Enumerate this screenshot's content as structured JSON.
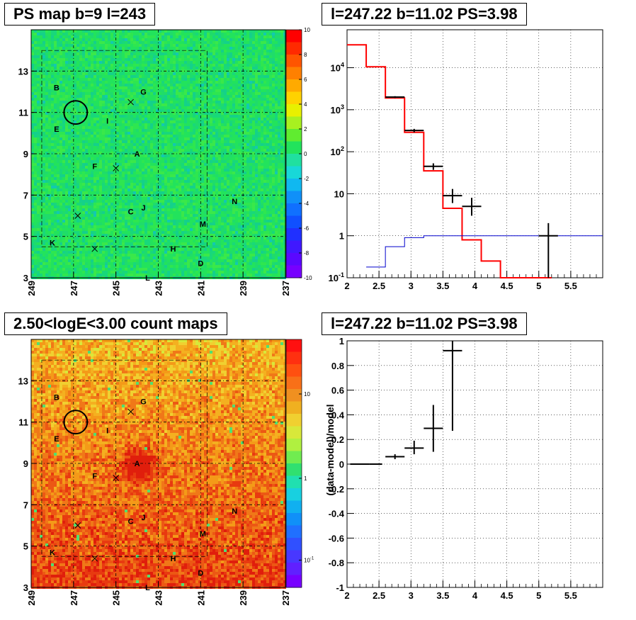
{
  "chart_data": [
    {
      "type": "heatmap",
      "title": "PS map b=9 l=243",
      "xlabel": "",
      "ylabel": "",
      "x_ticks": [
        "249",
        "247",
        "245",
        "243",
        "241",
        "239",
        "237"
      ],
      "y_ticks": [
        "3",
        "5",
        "7",
        "9",
        "11",
        "13"
      ],
      "xlim": [
        249,
        237
      ],
      "ylim": [
        3,
        15
      ],
      "grid": true,
      "color_scale": {
        "min": -10,
        "max": 10,
        "ticks": [
          "10",
          "8",
          "6",
          "4",
          "2",
          "0",
          "-2",
          "-4",
          "-6",
          "-8",
          "-10"
        ]
      },
      "colors": {
        "background": "#22e35c",
        "scale_top": "#ff0000",
        "scale_bottom": "#7700ff"
      },
      "sources": [
        {
          "label": "B",
          "l": 247.8,
          "b": 12.2
        },
        {
          "label": "G",
          "l": 243.7,
          "b": 12.0
        },
        {
          "label": "E",
          "l": 247.8,
          "b": 10.2
        },
        {
          "label": "I",
          "l": 245.4,
          "b": 10.6
        },
        {
          "label": "A",
          "l": 244.0,
          "b": 9.0
        },
        {
          "label": "F",
          "l": 246.0,
          "b": 8.4
        },
        {
          "label": "C",
          "l": 244.3,
          "b": 6.2
        },
        {
          "label": "J",
          "l": 243.7,
          "b": 6.4
        },
        {
          "label": "N",
          "l": 239.4,
          "b": 6.7
        },
        {
          "label": "M",
          "l": 240.9,
          "b": 5.6
        },
        {
          "label": "K",
          "l": 248.0,
          "b": 4.7
        },
        {
          "label": "H",
          "l": 242.3,
          "b": 4.4
        },
        {
          "label": "D",
          "l": 241.0,
          "b": 3.7
        },
        {
          "label": "L",
          "l": 243.5,
          "b": 3.0
        }
      ],
      "crosses": [
        {
          "l": 244.3,
          "b": 11.5
        },
        {
          "l": 245.0,
          "b": 8.3
        },
        {
          "l": 246.8,
          "b": 6.0
        },
        {
          "l": 246.0,
          "b": 4.4
        }
      ],
      "circle": {
        "l": 246.9,
        "b": 11.0,
        "r_deg": 0.55
      }
    },
    {
      "type": "line",
      "title": "l=247.22 b=11.02 PS=3.98",
      "xlabel": "",
      "ylabel": "",
      "x_ticks": [
        "2",
        "2.5",
        "3",
        "3.5",
        "4",
        "4.5",
        "5",
        "5.5"
      ],
      "y_ticks": [
        "10^4",
        "10^3",
        "10^2",
        "10",
        "1",
        "10^-1"
      ],
      "xlim": [
        2,
        6
      ],
      "ylim": [
        0.1,
        80000
      ],
      "log_y": true,
      "grid": true,
      "series": [
        {
          "color": "#ff0000",
          "step": true,
          "x": [
            2.0,
            2.3,
            2.6,
            2.9,
            3.2,
            3.5,
            3.8,
            4.1,
            4.4,
            5.2
          ],
          "values": [
            35000,
            10500,
            1900,
            290,
            35,
            4.5,
            0.8,
            0.25,
            0.1,
            0.1
          ]
        },
        {
          "color": "#0000cc",
          "step": true,
          "x": [
            2.3,
            2.6,
            2.9,
            3.2,
            3.5,
            3.8,
            4.1,
            6.0
          ],
          "values": [
            0.18,
            0.55,
            0.9,
            1.0,
            1.0,
            1.0,
            1.0,
            1.0
          ]
        },
        {
          "color": "#000000",
          "errorbars": true,
          "points": [
            {
              "x": 2.75,
              "xerr": 0.15,
              "y": 2000,
              "ylo": 1900,
              "yhi": 2100
            },
            {
              "x": 3.05,
              "xerr": 0.15,
              "y": 320,
              "ylo": 290,
              "yhi": 350
            },
            {
              "x": 3.35,
              "xerr": 0.15,
              "y": 45,
              "ylo": 37,
              "yhi": 53
            },
            {
              "x": 3.65,
              "xerr": 0.15,
              "y": 9,
              "ylo": 6,
              "yhi": 13
            },
            {
              "x": 3.95,
              "xerr": 0.15,
              "y": 5,
              "ylo": 3,
              "yhi": 8
            },
            {
              "x": 5.15,
              "xerr": 0.15,
              "y": 1,
              "ylo": 0.1,
              "yhi": 2
            }
          ]
        }
      ]
    },
    {
      "type": "heatmap",
      "title": "2.50<logE<3.00 count maps",
      "xlabel": "",
      "ylabel": "",
      "x_ticks": [
        "249",
        "247",
        "245",
        "243",
        "241",
        "239",
        "237"
      ],
      "y_ticks": [
        "3",
        "5",
        "7",
        "9",
        "11",
        "13"
      ],
      "xlim": [
        249,
        237
      ],
      "ylim": [
        3,
        15
      ],
      "grid": true,
      "color_scale": {
        "log": true,
        "ticks": [
          "10",
          "1",
          "10^-1"
        ]
      },
      "colors": {
        "background": "#f4a020",
        "scale_top": "#ff0000",
        "scale_bottom": "#7700ff"
      },
      "sources": [
        {
          "label": "B",
          "l": 247.8,
          "b": 12.2
        },
        {
          "label": "G",
          "l": 243.7,
          "b": 12.0
        },
        {
          "label": "E",
          "l": 247.8,
          "b": 10.2
        },
        {
          "label": "I",
          "l": 245.4,
          "b": 10.6
        },
        {
          "label": "A",
          "l": 244.0,
          "b": 9.0
        },
        {
          "label": "F",
          "l": 246.0,
          "b": 8.4
        },
        {
          "label": "C",
          "l": 244.3,
          "b": 6.2
        },
        {
          "label": "J",
          "l": 243.7,
          "b": 6.4
        },
        {
          "label": "N",
          "l": 239.4,
          "b": 6.7
        },
        {
          "label": "M",
          "l": 240.9,
          "b": 5.6
        },
        {
          "label": "K",
          "l": 248.0,
          "b": 4.7
        },
        {
          "label": "H",
          "l": 242.3,
          "b": 4.4
        },
        {
          "label": "D",
          "l": 241.0,
          "b": 3.7
        },
        {
          "label": "L",
          "l": 243.5,
          "b": 3.0
        }
      ],
      "crosses": [
        {
          "l": 244.3,
          "b": 11.5
        },
        {
          "l": 245.0,
          "b": 8.3
        },
        {
          "l": 246.8,
          "b": 6.0
        },
        {
          "l": 246.0,
          "b": 4.4
        }
      ],
      "circle": {
        "l": 246.9,
        "b": 11.0,
        "r_deg": 0.55
      }
    },
    {
      "type": "scatter",
      "title": "l=247.22 b=11.02 PS=3.98",
      "xlabel": "",
      "ylabel": "(data-model)/model",
      "x_ticks": [
        "2",
        "2.5",
        "3",
        "3.5",
        "4",
        "4.5",
        "5",
        "5.5"
      ],
      "y_ticks": [
        "1",
        "0.8",
        "0.6",
        "0.4",
        "0.2",
        "0",
        "-0.2",
        "-0.4",
        "-0.6",
        "-0.8",
        "-1"
      ],
      "xlim": [
        2,
        6
      ],
      "ylim": [
        -1,
        1
      ],
      "grid": true,
      "series": [
        {
          "color": "#000000",
          "errorbars": true,
          "points": [
            {
              "x": 2.2,
              "xerr": 0.15,
              "y": 0.0,
              "ylo": 0.0,
              "yhi": 0.0
            },
            {
              "x": 2.45,
              "xerr": 0.1,
              "y": 0.0,
              "ylo": 0.0,
              "yhi": 0.0
            },
            {
              "x": 2.75,
              "xerr": 0.15,
              "y": 0.06,
              "ylo": 0.04,
              "yhi": 0.08
            },
            {
              "x": 3.05,
              "xerr": 0.15,
              "y": 0.13,
              "ylo": 0.08,
              "yhi": 0.19
            },
            {
              "x": 3.35,
              "xerr": 0.15,
              "y": 0.29,
              "ylo": 0.1,
              "yhi": 0.48
            },
            {
              "x": 3.65,
              "xerr": 0.15,
              "y": 0.92,
              "ylo": 0.27,
              "yhi": 1.0
            }
          ]
        }
      ]
    }
  ]
}
